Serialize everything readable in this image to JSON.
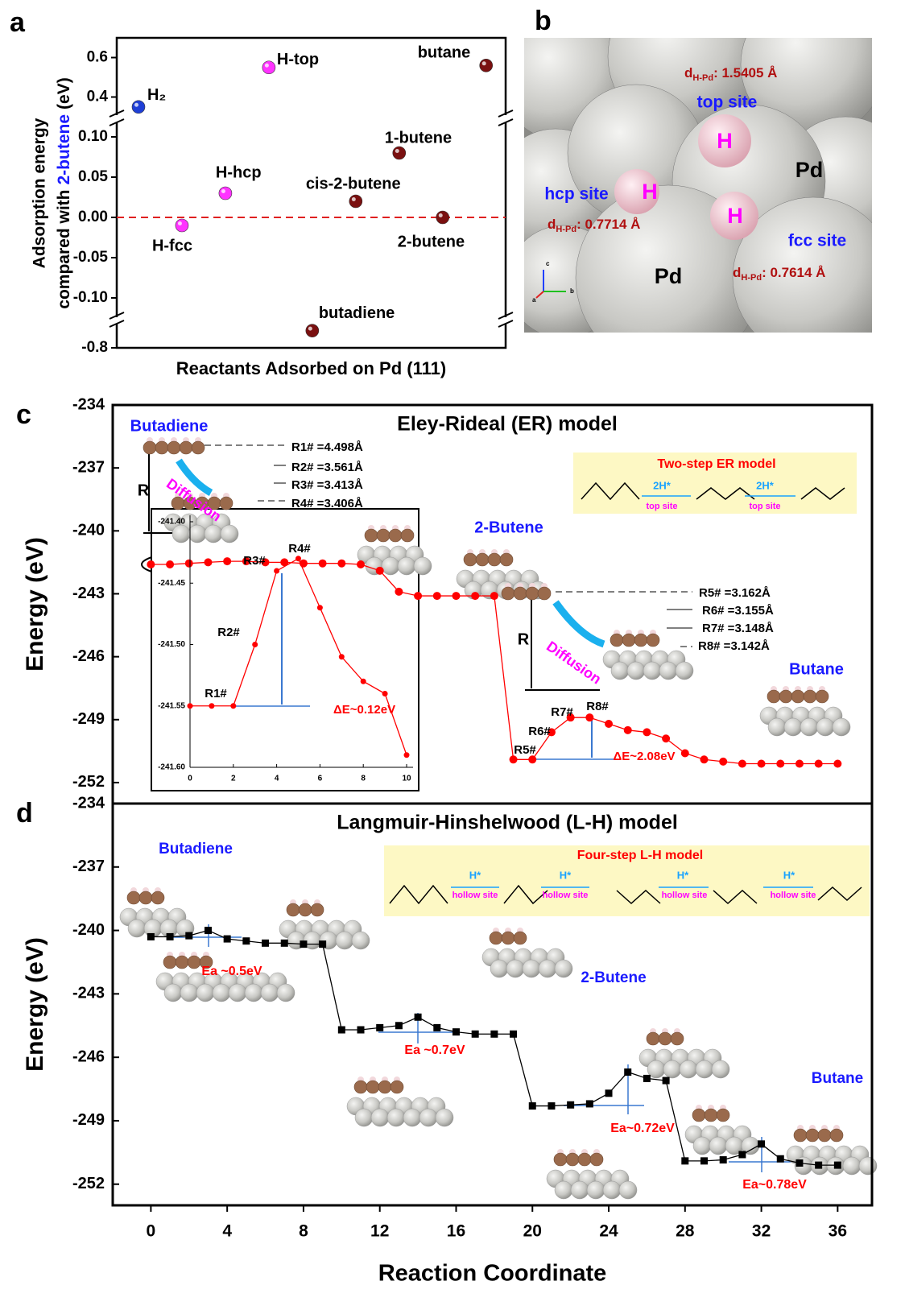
{
  "chart_data": [
    {
      "type": "scatter",
      "panel_label": "a",
      "x_label": "Reactants Adsorbed on Pd (111)",
      "y_label": [
        "Adsorption energy",
        "compared with",
        "2-butene",
        "(eV)"
      ],
      "categories": [
        "H₂",
        "H-fcc",
        "H-hcp",
        "H-top",
        "butadiene",
        "cis-2-butene",
        "1-butene",
        "2-butene",
        "butane"
      ],
      "x": [
        0,
        1,
        2,
        3,
        4,
        5,
        6,
        7,
        8
      ],
      "values": [
        0.35,
        -0.01,
        0.03,
        0.55,
        -0.78,
        0.02,
        0.08,
        0.0,
        0.56
      ],
      "colors": [
        "#1f3fd6",
        "#ff33ff",
        "#ff33ff",
        "#ff33ff",
        "#7a1010",
        "#7a1010",
        "#7a1010",
        "#7a1010",
        "#7a1010"
      ],
      "xlim": [
        -0.5,
        8.45
      ],
      "y_segments": [
        {
          "ylim": [
            -0.8,
            -0.77
          ],
          "yticks": [
            -0.8
          ]
        },
        {
          "ylim": [
            -0.125,
            0.12
          ],
          "yticks": [
            {
              "value": -0.1,
              "label": "-0.10"
            },
            -0.05,
            {
              "value": 0,
              "label": "0.00"
            },
            0.05,
            {
              "value": 0.1,
              "label": "0.10"
            }
          ]
        },
        {
          "ylim": [
            0.3,
            0.7
          ],
          "yticks": [
            0.4,
            0.6
          ]
        }
      ],
      "reference_line": {
        "value": 0,
        "color": "#e02020"
      }
    },
    {
      "type": "line",
      "panel_label": "c",
      "title": "Eley-Rideal (ER) model",
      "y_label": "Energy (eV)",
      "x": [
        0,
        1,
        2,
        3,
        4,
        5,
        6,
        7,
        8,
        9,
        10,
        11,
        12,
        13,
        14,
        15,
        16,
        17,
        18,
        19,
        20,
        21,
        22,
        23,
        24,
        25,
        26,
        27,
        28,
        29,
        30,
        31,
        32,
        33,
        34,
        35,
        36
      ],
      "values": [
        -241.6,
        -241.6,
        -241.55,
        -241.5,
        -241.45,
        -241.45,
        -241.5,
        -241.5,
        -241.55,
        -241.55,
        -241.55,
        -241.6,
        -241.9,
        -242.9,
        -243.1,
        -243.1,
        -243.1,
        -243.1,
        -243.1,
        -250.9,
        -250.9,
        -249.6,
        -248.9,
        -248.9,
        -249.2,
        -249.5,
        -249.6,
        -249.9,
        -250.6,
        -250.9,
        -251.0,
        -251.1,
        -251.1,
        -251.1,
        -251.1,
        -251.1,
        -251.1
      ],
      "color": "#ff0000",
      "xlim": [
        -2,
        37.8
      ],
      "ylim": [
        -253,
        -234
      ],
      "yticks": [
        -252,
        -249,
        -246,
        -243,
        -240,
        -237,
        -234
      ],
      "annotations": [
        {
          "text": "Butadiene",
          "color": "#1a1aff"
        },
        {
          "text": "Diffusion",
          "color": "#ff00ff"
        },
        {
          "text": "R"
        },
        {
          "text": "R1# =4.498Å"
        },
        {
          "text": "R2# =3.561Å"
        },
        {
          "text": "R3# =3.413Å"
        },
        {
          "text": "R4# =3.406Å"
        },
        {
          "text": "2-Butene",
          "color": "#1a1aff"
        },
        {
          "text": "Two-step ER model",
          "color": "#ff0000"
        },
        {
          "text": "2H*",
          "color": "#1aa3ff"
        },
        {
          "text": "top site",
          "color": "#ff00ff"
        },
        {
          "text": "2H*",
          "color": "#1aa3ff"
        },
        {
          "text": "top site",
          "color": "#ff00ff"
        },
        {
          "text": "R5# =3.162Å"
        },
        {
          "text": "R6# =3.155Å"
        },
        {
          "text": "R7# =3.148Å"
        },
        {
          "text": "R8# =3.142Å"
        },
        {
          "text": "R"
        },
        {
          "text": "Diffusion",
          "color": "#ff00ff"
        },
        {
          "text": "Butane",
          "color": "#1a1aff"
        },
        {
          "text": "R5#"
        },
        {
          "text": "R6#"
        },
        {
          "text": "R7#"
        },
        {
          "text": "R8#"
        },
        {
          "text": "ΔE~2.08eV",
          "color": "#ff0000"
        }
      ],
      "inset": {
        "type": "line",
        "x": [
          0,
          1,
          2,
          3,
          4,
          5,
          6,
          7,
          8,
          9,
          10
        ],
        "values": [
          -241.55,
          -241.55,
          -241.55,
          -241.5,
          -241.44,
          -241.43,
          -241.47,
          -241.51,
          -241.53,
          -241.54,
          -241.59
        ],
        "color": "#ff0000",
        "xlim": [
          0,
          10
        ],
        "ylim": [
          -241.6,
          -241.4
        ],
        "xticks": [
          0,
          2,
          4,
          6,
          8,
          10
        ],
        "yticks": [
          {
            "value": -241.6,
            "label": "-241.60"
          },
          -241.55,
          {
            "value": -241.5,
            "label": "-241.50"
          },
          -241.45,
          {
            "value": -241.4,
            "label": "-241.40"
          }
        ],
        "annotations": [
          {
            "text": "R1#"
          },
          {
            "text": "R2#"
          },
          {
            "text": "R3#"
          },
          {
            "text": "R4#"
          },
          {
            "text": "ΔE~0.12eV",
            "color": "#ff0000"
          }
        ]
      }
    },
    {
      "type": "line",
      "panel_label": "d",
      "title": "Langmuir-Hinshelwood (L-H) model",
      "y_label": "Energy (eV)",
      "x_label": "Reaction Coordinate",
      "x": [
        0,
        1,
        2,
        3,
        4,
        5,
        6,
        7,
        8,
        9,
        10,
        11,
        12,
        13,
        14,
        15,
        16,
        17,
        18,
        19,
        20,
        21,
        22,
        23,
        24,
        25,
        26,
        27,
        28,
        29,
        30,
        31,
        32,
        33,
        34,
        35,
        36
      ],
      "values": [
        -240.3,
        -240.3,
        -240.25,
        -240.0,
        -240.4,
        -240.5,
        -240.6,
        -240.6,
        -240.65,
        -240.65,
        -244.7,
        -244.7,
        -244.6,
        -244.5,
        -244.1,
        -244.6,
        -244.8,
        -244.9,
        -244.9,
        -244.9,
        -248.3,
        -248.3,
        -248.25,
        -248.2,
        -247.7,
        -246.7,
        -247.0,
        -247.1,
        -250.9,
        -250.9,
        -250.85,
        -250.6,
        -250.1,
        -250.8,
        -251.0,
        -251.1,
        -251.1
      ],
      "color": "#000000",
      "xlim": [
        -2,
        37.8
      ],
      "ylim": [
        -253,
        -234
      ],
      "xticks": [
        0,
        4,
        8,
        12,
        16,
        20,
        24,
        28,
        32,
        36
      ],
      "yticks": [
        -252,
        -249,
        -246,
        -243,
        -240,
        -237,
        -234
      ],
      "annotations": [
        {
          "text": "Butadiene",
          "color": "#1a1aff"
        },
        {
          "text": "Four-step L-H model",
          "color": "#ff0000"
        },
        {
          "text": "H*",
          "color": "#1aa3ff"
        },
        {
          "text": "hollow site",
          "color": "#ff00ff"
        },
        {
          "text": "H*",
          "color": "#1aa3ff"
        },
        {
          "text": "hollow site",
          "color": "#ff00ff"
        },
        {
          "text": "H*",
          "color": "#1aa3ff"
        },
        {
          "text": "hollow site",
          "color": "#ff00ff"
        },
        {
          "text": "H*",
          "color": "#1aa3ff"
        },
        {
          "text": "hollow site",
          "color": "#ff00ff"
        },
        {
          "text": "Ea ~0.5eV",
          "color": "#ff0000"
        },
        {
          "text": "Ea ~0.7eV",
          "color": "#ff0000"
        },
        {
          "text": "2-Butene",
          "color": "#1a1aff"
        },
        {
          "text": "Ea~0.72eV",
          "color": "#ff0000"
        },
        {
          "text": "Butane",
          "color": "#1a1aff"
        },
        {
          "text": "Ea~0.78eV",
          "color": "#ff0000"
        }
      ]
    }
  ],
  "panel_b": {
    "label": "b",
    "distances": [
      {
        "symbol": "d",
        "subscript": "H-Pd",
        "value": ": 1.5405 Å"
      },
      {
        "symbol": "d",
        "subscript": "H-Pd",
        "value": ": 0.7714 Å"
      },
      {
        "symbol": "d",
        "subscript": "H-Pd",
        "value": ": 0.7614 Å"
      }
    ],
    "site_labels": [
      "top site",
      "hcp site",
      "fcc site"
    ],
    "atom_labels": [
      "H",
      "H",
      "H",
      "Pd",
      "Pd"
    ],
    "axes": [
      "c",
      "b",
      "a"
    ]
  }
}
